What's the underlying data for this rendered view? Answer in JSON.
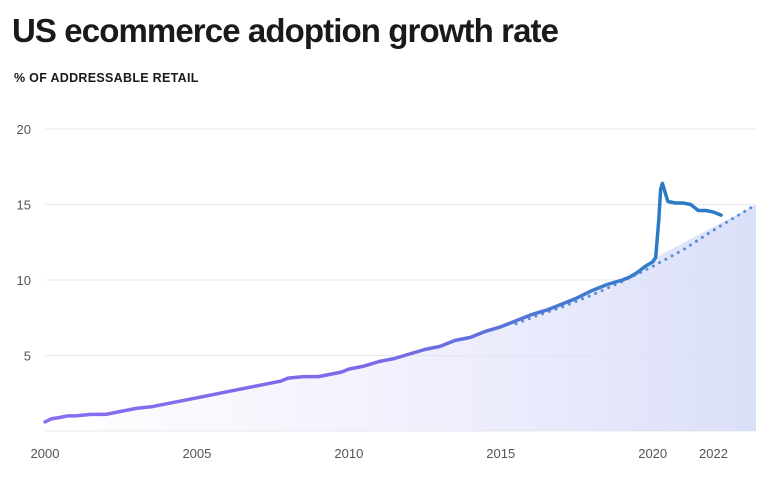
{
  "title": "US ecommerce adoption growth rate",
  "subtitle": "% OF ADDRESSABLE RETAIL",
  "chart_data": {
    "type": "line",
    "title": "US ecommerce adoption growth rate",
    "subtitle": "% OF ADDRESSABLE RETAIL",
    "xlabel": "",
    "ylabel": "",
    "xlim": [
      2000,
      2023.4
    ],
    "ylim": [
      0,
      20
    ],
    "x_ticks": [
      2000,
      2005,
      2010,
      2015,
      2020,
      2022
    ],
    "y_ticks": [
      5,
      10,
      15,
      20
    ],
    "grid": true,
    "legend": "none",
    "colors": {
      "historical_start": "#8a6df0",
      "historical_end": "#2f7fc8",
      "actual": "#2b7bc4",
      "trend": "#5b8ed4",
      "gridline": "#e8e8e8",
      "area_fill": "#dfe0fb"
    },
    "series": [
      {
        "style": "historical",
        "x": [
          2000,
          2000.2,
          2000.5,
          2000.75,
          2001,
          2001.5,
          2002,
          2002.5,
          2002.75,
          2003,
          2003.5,
          2004,
          2004.5,
          2005,
          2005.5,
          2006,
          2006.5,
          2007,
          2007.25,
          2007.75,
          2008,
          2008.5,
          2009,
          2009.25,
          2009.75,
          2010,
          2010.25,
          2010.5,
          2011,
          2011.5,
          2012,
          2012.5,
          2013,
          2013.5,
          2014,
          2014.5,
          2015,
          2015.5,
          2016,
          2016.5,
          2017,
          2017.5,
          2018,
          2018.5,
          2019,
          2019.25,
          2019.5,
          2019.75,
          2020,
          2020.1
        ],
        "y": [
          0.6,
          0.8,
          0.9,
          1.0,
          1.0,
          1.1,
          1.1,
          1.3,
          1.4,
          1.5,
          1.6,
          1.8,
          2.0,
          2.2,
          2.4,
          2.6,
          2.8,
          3.0,
          3.1,
          3.3,
          3.5,
          3.6,
          3.6,
          3.7,
          3.9,
          4.1,
          4.2,
          4.3,
          4.6,
          4.8,
          5.1,
          5.4,
          5.6,
          6.0,
          6.2,
          6.6,
          6.9,
          7.3,
          7.7,
          8.0,
          8.4,
          8.8,
          9.3,
          9.7,
          10.0,
          10.2,
          10.5,
          10.9,
          11.2,
          11.5
        ]
      },
      {
        "style": "actual",
        "x": [
          2020.1,
          2020.2,
          2020.26,
          2020.32,
          2020.38,
          2020.5,
          2020.75,
          2021,
          2021.25,
          2021.5,
          2021.75,
          2022,
          2022.25
        ],
        "y": [
          11.5,
          14.0,
          16.0,
          16.4,
          16.0,
          15.2,
          15.1,
          15.1,
          15.0,
          14.6,
          14.6,
          14.5,
          14.3
        ]
      },
      {
        "style": "trend",
        "x": [
          2015.5,
          2016,
          2017,
          2018,
          2019,
          2020,
          2021,
          2022,
          2023.4
        ],
        "y": [
          7.1,
          7.5,
          8.2,
          9.0,
          9.9,
          10.9,
          12.0,
          13.3,
          15.0
        ]
      }
    ]
  }
}
